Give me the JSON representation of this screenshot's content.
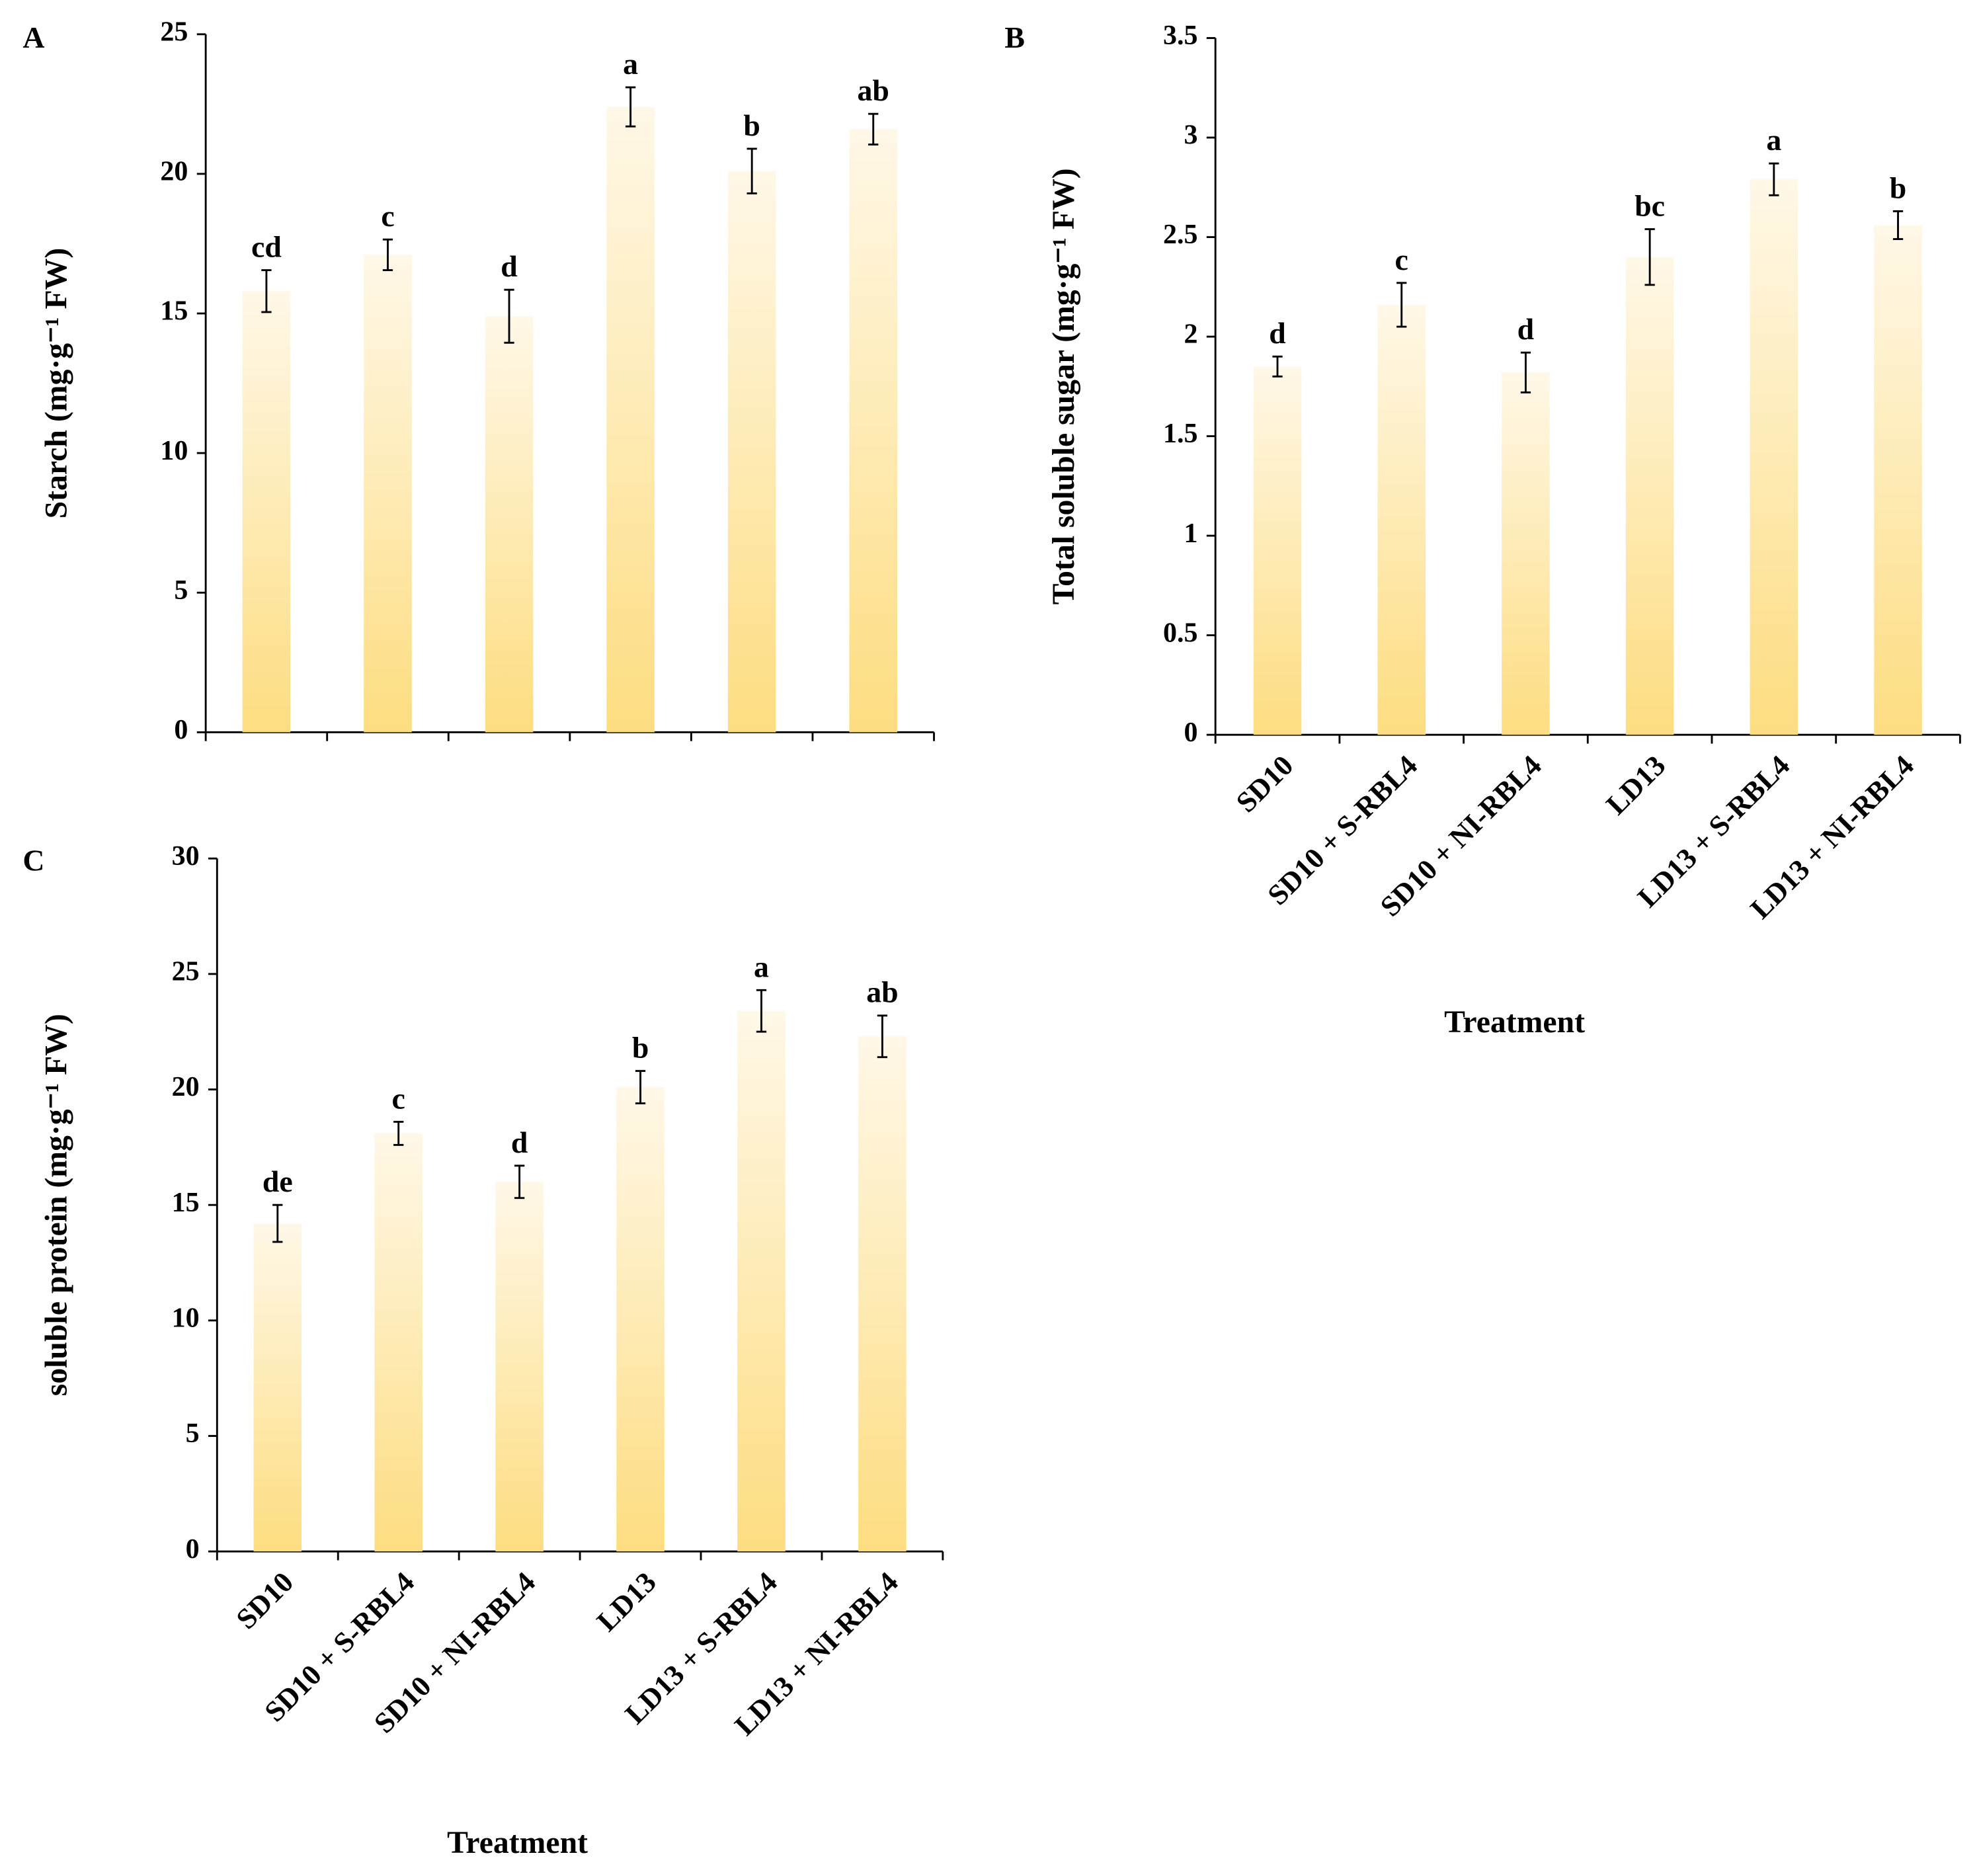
{
  "chart_data": [
    {
      "type": "bar",
      "panel": "A",
      "y_label": "Starch (mg·g⁻¹ FW)",
      "categories": [
        null,
        null,
        null,
        null,
        null,
        null
      ],
      "values": [
        15.8,
        17.1,
        14.9,
        22.4,
        20.1,
        21.6
      ],
      "errors": [
        0.75,
        0.55,
        0.95,
        0.7,
        0.8,
        0.55
      ],
      "letters": [
        "cd",
        "c",
        "d",
        "a",
        "b",
        "ab"
      ],
      "color": "#fddd80",
      "ylim": [
        0,
        25
      ],
      "yticks": [
        0,
        5,
        10,
        15,
        20,
        25
      ]
    },
    {
      "type": "bar",
      "panel": "B",
      "y_label": "Total soluble sugar (mg·g⁻¹ FW)",
      "x_label": "Treatment",
      "categories": [
        "SD10",
        "SD10 + S-RBL4",
        "SD10 + NI-RBL4",
        "LD13",
        "LD13 + S-RBL4",
        "LD13 + NI-RBL4"
      ],
      "values": [
        1.85,
        2.16,
        1.82,
        2.4,
        2.79,
        2.56
      ],
      "errors": [
        0.05,
        0.11,
        0.1,
        0.14,
        0.08,
        0.07
      ],
      "letters": [
        "d",
        "c",
        "d",
        "bc",
        "a",
        "b"
      ],
      "color": "#fddd80",
      "ylim": [
        0,
        3.5
      ],
      "yticks": [
        0,
        0.5,
        1,
        1.5,
        2,
        2.5,
        3,
        3.5
      ]
    },
    {
      "type": "bar",
      "panel": "C",
      "y_label": "soluble protein (mg·g⁻¹ FW)",
      "x_label": "Treatment",
      "categories": [
        "SD10",
        "SD10 + S-RBL4",
        "SD10 + NI-RBL4",
        "LD13",
        "LD13 + S-RBL4",
        "LD13 + NI-RBL4"
      ],
      "values": [
        14.2,
        18.1,
        16.0,
        20.1,
        23.4,
        22.3
      ],
      "errors": [
        0.8,
        0.5,
        0.7,
        0.7,
        0.9,
        0.9
      ],
      "letters": [
        "de",
        "c",
        "d",
        "b",
        "a",
        "ab"
      ],
      "color": "#fddd80",
      "ylim": [
        0,
        30
      ],
      "yticks": [
        0,
        5,
        10,
        15,
        20,
        25,
        30
      ]
    }
  ]
}
